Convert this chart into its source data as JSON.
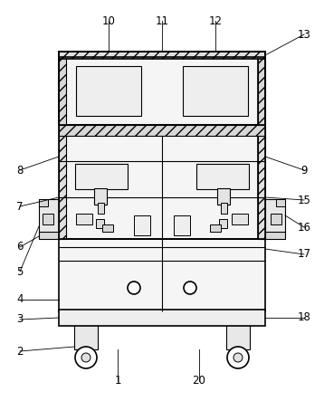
{
  "background_color": "#ffffff",
  "line_color": "#000000",
  "lw_main": 1.2,
  "lw_thin": 0.8,
  "fc_white": "#ffffff",
  "fc_light": "#f0f0f0",
  "fc_gray": "#d8d8d8",
  "fc_dark": "#c0c0c0"
}
